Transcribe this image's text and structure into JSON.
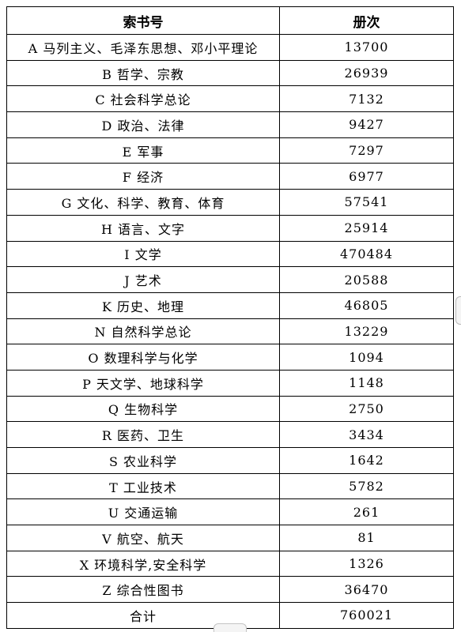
{
  "table": {
    "headers": [
      "索书号",
      "册次"
    ],
    "rows": [
      {
        "category": "A 马列主义、毛泽东思想、邓小平理论",
        "count": "13700"
      },
      {
        "category": "B 哲学、宗教",
        "count": "26939"
      },
      {
        "category": "C 社会科学总论",
        "count": "7132"
      },
      {
        "category": "D 政治、法律",
        "count": "9427"
      },
      {
        "category": "E 军事",
        "count": "7297"
      },
      {
        "category": "F 经济",
        "count": "6977"
      },
      {
        "category": "G 文化、科学、教育、体育",
        "count": "57541"
      },
      {
        "category": "H 语言、文字",
        "count": "25914"
      },
      {
        "category": "I 文学",
        "count": "470484"
      },
      {
        "category": "J 艺术",
        "count": "20588"
      },
      {
        "category": "K 历史、地理",
        "count": "46805"
      },
      {
        "category": "N 自然科学总论",
        "count": "13229"
      },
      {
        "category": "O 数理科学与化学",
        "count": "1094"
      },
      {
        "category": "P 天文学、地球科学",
        "count": "1148"
      },
      {
        "category": "Q 生物科学",
        "count": "2750"
      },
      {
        "category": "R 医药、卫生",
        "count": "3434"
      },
      {
        "category": "S 农业科学",
        "count": "1642"
      },
      {
        "category": "T 工业技术",
        "count": "5782"
      },
      {
        "category": "U 交通运输",
        "count": "261"
      },
      {
        "category": "V 航空、航天",
        "count": "81"
      },
      {
        "category": "X 环境科学,安全科学",
        "count": "1326"
      },
      {
        "category": "Z 综合性图书",
        "count": "36470"
      }
    ],
    "total": {
      "label": "合计",
      "count": "760021"
    }
  }
}
